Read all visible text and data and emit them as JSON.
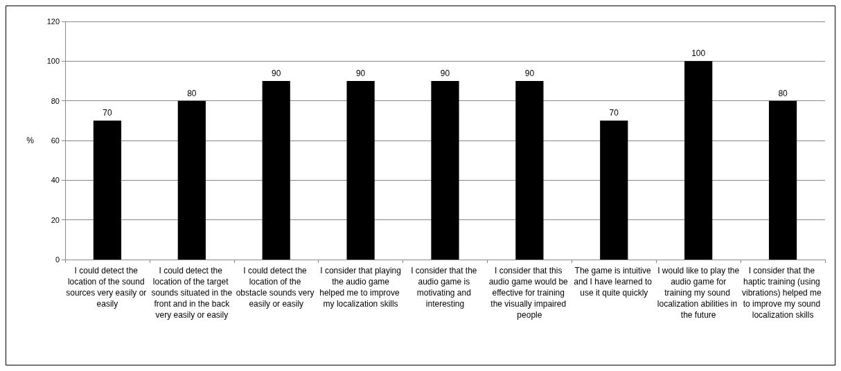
{
  "chart_data": {
    "type": "bar",
    "ylabel": "%",
    "categories": [
      "I could detect the location of the sound sources very easily or easily",
      "I could detect the location of the target sounds situated in the front and in the back very easily or easily",
      "I could detect the location of the obstacle sounds very easily or easily",
      "I consider that playing the audio game helped me to improve my localization skills",
      "I consider that the audio game is motivating and interesting",
      "I consider that this audio game would be effective for training the visually impaired people",
      "The game is intuitive and I have learned to use it quite quickly",
      "I would like to play the audio game for training my sound localization abilities in the future",
      "I consider that the haptic training (using vibrations) helped me to improve my sound localization skills"
    ],
    "values": [
      70,
      80,
      90,
      90,
      90,
      90,
      70,
      100,
      80
    ],
    "color": "#000000",
    "ylim": [
      0,
      120
    ],
    "yticks": [
      0,
      20,
      40,
      60,
      80,
      100,
      120
    ],
    "grid": "y",
    "data_labels": true
  }
}
